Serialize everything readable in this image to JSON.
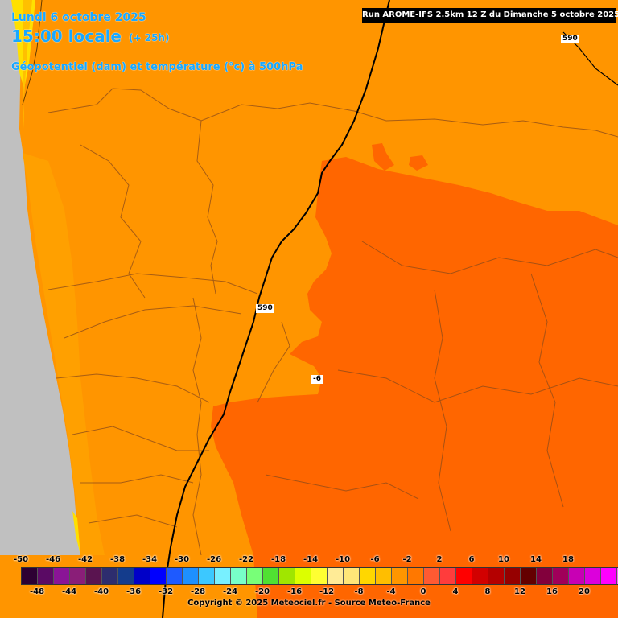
{
  "header": {
    "date": "Lundi 6 octobre 2025",
    "local_time": "15:00 locale",
    "lead_time": "(+ 25h)",
    "field": "Géopotentiel (dam) et température (°c) à 500hPa",
    "run_info": "Run AROME-IFS 2.5km 12 Z du Dimanche 5 octobre 2025"
  },
  "map": {
    "contour_labels": [
      "590",
      "590"
    ],
    "temp_label": "-6",
    "colors": {
      "sea": "#c0c0c0",
      "temp_minus_8": "#ffc000",
      "temp_minus_7": "#ff9500",
      "temp_minus_6": "#ff6600",
      "yellow_band": "#ffe000",
      "borders": "#8a4a1a",
      "contour": "#000000"
    }
  },
  "legend": {
    "top_ticks": [
      "-50",
      "-46",
      "-42",
      "-38",
      "-34",
      "-30",
      "-26",
      "-22",
      "-18",
      "-14",
      "-10",
      "-6",
      "-2",
      "2",
      "6",
      "10",
      "14",
      "18"
    ],
    "bottom_ticks": [
      "-48",
      "-44",
      "-40",
      "-36",
      "-32",
      "-28",
      "-24",
      "-20",
      "-16",
      "-12",
      "-8",
      "-4",
      "0",
      "4",
      "8",
      "12",
      "16",
      "20"
    ],
    "swatches": [
      "#2d0033",
      "#5a0a64",
      "#8a1496",
      "#8a1e78",
      "#5a1450",
      "#2d2d6e",
      "#143c8c",
      "#0000c8",
      "#0000ff",
      "#1e5aff",
      "#1e90ff",
      "#3cc8ff",
      "#78f0ff",
      "#78ffc8",
      "#78ff78",
      "#50e032",
      "#a0e600",
      "#dcff00",
      "#ffff32",
      "#ffeb96",
      "#ffe678",
      "#ffd700",
      "#ffbe00",
      "#ff9600",
      "#ff7800",
      "#ff5a32",
      "#ff3c3c",
      "#ff0000",
      "#d20000",
      "#b40000",
      "#960000",
      "#640000",
      "#82003c",
      "#a0005a",
      "#c800b4",
      "#dc00dc",
      "#ff00ff",
      "#ff64ff",
      "#ffa0ff"
    ],
    "copyright": "Copyright © 2025 Meteociel.fr - Source Meteo-France"
  }
}
